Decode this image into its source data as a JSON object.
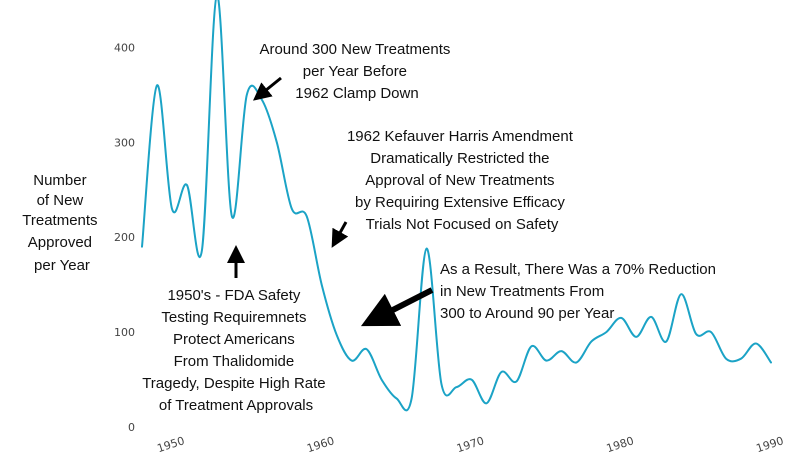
{
  "colors": {
    "line": "#1ba3c6",
    "text": "#111111",
    "arrow": "#000000"
  },
  "chart_data": {
    "type": "line",
    "title": "",
    "xlabel": "",
    "ylabel_lines": [
      "Number",
      "of New",
      "Treatments",
      "Approved",
      "per Year"
    ],
    "xlim": [
      1948,
      1990
    ],
    "ylim": [
      0,
      450
    ],
    "x_ticks": [
      1950,
      1960,
      1970,
      1980,
      1990
    ],
    "y_ticks": [
      0,
      100,
      200,
      300,
      400
    ],
    "grid": false,
    "series": [
      {
        "x": [
          1948,
          1949,
          1950,
          1951,
          1952,
          1953,
          1954,
          1955,
          1956,
          1957,
          1958,
          1959,
          1960,
          1961,
          1962,
          1963,
          1964,
          1965,
          1966,
          1967,
          1968,
          1969,
          1970,
          1971,
          1972,
          1973,
          1974,
          1975,
          1976,
          1977,
          1978,
          1979,
          1980,
          1981,
          1982,
          1983,
          1984,
          1985,
          1986,
          1987,
          1988,
          1989,
          1990
        ],
        "values": [
          190,
          360,
          230,
          255,
          186,
          455,
          222,
          350,
          345,
          300,
          230,
          222,
          150,
          97,
          70,
          82,
          50,
          30,
          30,
          188,
          45,
          42,
          50,
          25,
          58,
          48,
          85,
          70,
          80,
          68,
          90,
          100,
          115,
          95,
          116,
          90,
          140,
          98,
          100,
          72,
          72,
          88,
          68
        ]
      }
    ],
    "annotations": [
      {
        "lines": [
          "Around 300 New Treatments",
          "per Year Before",
          "1962 Clamp Down"
        ]
      },
      {
        "lines": [
          "1962 Kefauver Harris Amendment",
          "Dramatically Restricted the",
          "Approval of New Treatments",
          "by Requiring Extensive Efficacy",
          "Trials Not Focused on Safety"
        ]
      },
      {
        "lines": [
          "As a Result, There Was a 70% Reduction",
          "in New Treatments From",
          "300 to Around 90 per Year"
        ]
      },
      {
        "lines": [
          "1950's - FDA Safety",
          "Testing Requiremnets",
          "Protect Americans",
          "From Thalidomide",
          "Tragedy, Despite High Rate",
          "of Treatment Approvals"
        ]
      }
    ]
  }
}
